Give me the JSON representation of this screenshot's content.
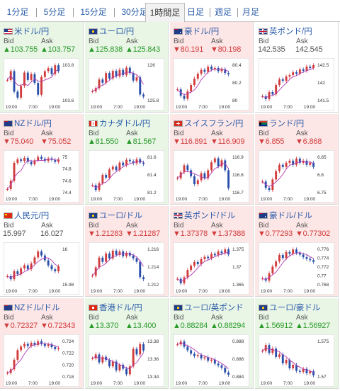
{
  "tabs": [
    {
      "label": "1分足",
      "active": false
    },
    {
      "label": "5分足",
      "active": false
    },
    {
      "label": "15分足",
      "active": false
    },
    {
      "label": "30分足",
      "active": false
    },
    {
      "label": "1時間足",
      "active": true
    },
    {
      "label": "日足",
      "active": false
    },
    {
      "label": "週足",
      "active": false
    },
    {
      "label": "月足",
      "active": false
    }
  ],
  "labels": {
    "bid": "Bid",
    "ask": "Ask"
  },
  "colors": {
    "up": "#2a9a2a",
    "down": "#d23c3c",
    "link": "#2a5caa",
    "ma_line": "#b23ab2",
    "up_bg": "#e9f6e6",
    "down_bg": "#fde6e6"
  },
  "pairs": [
    {
      "name": "米ドル/円",
      "flag": "us-flag-icon",
      "trend": "up",
      "bid": "▲103.755",
      "ask": "▲103.757",
      "yticks": [
        "103.8",
        "103.6"
      ],
      "xticks": [
        "19:00",
        "7:00",
        "19:00"
      ],
      "chart_data": {
        "type": "line",
        "close": [
          103.7,
          103.76,
          103.62,
          103.58,
          103.66,
          103.75,
          103.7,
          103.74,
          103.68,
          103.6,
          103.72,
          103.76,
          103.78,
          103.74,
          103.8,
          103.76
        ],
        "ylim": [
          103.55,
          103.82
        ]
      }
    },
    {
      "name": "ユーロ/円",
      "flag": "eu-flag-icon",
      "trend": "up",
      "bid": "▲125.838",
      "ask": "▲125.843",
      "yticks": [
        "126",
        "125.8"
      ],
      "xticks": [
        "19:00",
        "7:00",
        "19:00"
      ],
      "chart_data": {
        "type": "line",
        "close": [
          125.85,
          125.88,
          125.96,
          125.93,
          126.02,
          125.97,
          126.04,
          125.99,
          126.05,
          126.0,
          126.07,
          126.02,
          125.95,
          125.98,
          125.82,
          125.8
        ],
        "ylim": [
          125.75,
          126.12
        ]
      }
    },
    {
      "name": "豪ドル/円",
      "flag": "au-flag-icon",
      "trend": "down",
      "bid": "▼80.191",
      "ask": "▼80.198",
      "yticks": [
        "80.4",
        "80.2",
        "80"
      ],
      "xticks": [
        "19:00",
        "7:00",
        "19:00"
      ],
      "chart_data": {
        "type": "line",
        "close": [
          80.05,
          79.95,
          79.9,
          80.02,
          80.12,
          80.22,
          80.3,
          80.36,
          80.33,
          80.41,
          80.37,
          80.39,
          80.34,
          80.37,
          80.31,
          80.29
        ],
        "ylim": [
          79.85,
          80.48
        ]
      }
    },
    {
      "name": "英ポンド/円",
      "flag": "gb-flag-icon",
      "trend": "flat",
      "bid": "142.535",
      "ask": "142.545",
      "yticks": [
        "142.5",
        "142",
        "141.5"
      ],
      "xticks": [
        "19:00",
        "7:00",
        "19:00"
      ],
      "chart_data": {
        "type": "line",
        "close": [
          141.55,
          141.45,
          141.7,
          141.62,
          141.95,
          142.15,
          142.1,
          142.25,
          142.3,
          142.4,
          142.35,
          142.5,
          142.45,
          142.6,
          142.55,
          142.65
        ],
        "ylim": [
          141.35,
          142.75
        ]
      }
    },
    {
      "name": "NZドル/円",
      "flag": "nz-flag-icon",
      "trend": "down",
      "bid": "▼75.040",
      "ask": "▼75.052",
      "yticks": [
        "75",
        "74.8",
        "74.6",
        "74.4"
      ],
      "xticks": [
        "19:00",
        "7:00",
        "19:00"
      ],
      "chart_data": {
        "type": "line",
        "close": [
          74.45,
          74.62,
          74.98,
          75.05,
          75.02,
          75.08,
          75.0,
          74.95,
          75.03,
          75.1,
          75.06,
          75.02,
          75.07,
          75.04,
          75.0,
          75.05
        ],
        "ylim": [
          74.35,
          75.15
        ]
      }
    },
    {
      "name": "カナダドル/円",
      "flag": "ca-flag-icon",
      "trend": "up",
      "bid": "▲81.550",
      "ask": "▲81.567",
      "yticks": [
        "81.6",
        "81.4",
        "81.2"
      ],
      "xticks": [
        "19:00",
        "7:00",
        "19:00"
      ],
      "chart_data": {
        "type": "line",
        "close": [
          81.25,
          81.18,
          81.28,
          81.4,
          81.36,
          81.48,
          81.52,
          81.47,
          81.58,
          81.54,
          81.62,
          81.6,
          81.57,
          81.63,
          81.58,
          81.56
        ],
        "ylim": [
          81.12,
          81.7
        ]
      }
    },
    {
      "name": "スイスフラン/円",
      "flag": "ch-flag-icon",
      "trend": "down",
      "bid": "▼116.891",
      "ask": "▼116.909",
      "yticks": [
        "116.9",
        "116.8",
        "116.7"
      ],
      "xticks": [
        "19:00",
        "7:00",
        "19:00"
      ],
      "chart_data": {
        "type": "line",
        "close": [
          116.8,
          116.86,
          116.93,
          116.88,
          116.82,
          116.74,
          116.78,
          116.85,
          116.8,
          116.88,
          116.96,
          117.0,
          116.92,
          116.98,
          116.88,
          116.7
        ],
        "ylim": [
          116.64,
          117.04
        ]
      }
    },
    {
      "name": "ランド/円",
      "flag": "za-flag-icon",
      "trend": "down",
      "bid": "▼6.855",
      "ask": "▼6.868",
      "yticks": [
        "6.85",
        "6.8",
        "6.75"
      ],
      "xticks": [
        "19:00",
        "7:00",
        "19:00"
      ],
      "chart_data": {
        "type": "line",
        "close": [
          6.78,
          6.75,
          6.74,
          6.79,
          6.83,
          6.86,
          6.85,
          6.87,
          6.88,
          6.86,
          6.89,
          6.87,
          6.88,
          6.86,
          6.87,
          6.85
        ],
        "ylim": [
          6.72,
          6.91
        ]
      }
    },
    {
      "name": "人民元/円",
      "flag": "cn-flag-icon",
      "trend": "flat",
      "bid": "15.997",
      "ask": "16.027",
      "yticks": [
        "16",
        "15.98"
      ],
      "xticks": [
        "19:00",
        "7:00",
        "19:00"
      ],
      "chart_data": {
        "type": "line",
        "close": [
          15.985,
          15.982,
          15.99,
          15.987,
          15.993,
          15.996,
          15.992,
          15.998,
          16.004,
          16.01,
          16.006,
          16.001,
          15.996,
          15.992,
          15.99,
          15.995
        ],
        "ylim": [
          15.975,
          16.015
        ]
      }
    },
    {
      "name": "ユーロ/ドル",
      "flag": "eu-flag-icon",
      "trend": "down",
      "bid": "▼1.21283",
      "ask": "▼1.21287",
      "yticks": [
        "1.216",
        "1.214",
        "1.212"
      ],
      "xticks": [
        "19:00",
        "7:00",
        "19:00"
      ],
      "chart_data": {
        "type": "line",
        "close": [
          1.213,
          1.2142,
          1.2156,
          1.215,
          1.2162,
          1.2155,
          1.2166,
          1.216,
          1.2165,
          1.2158,
          1.2163,
          1.2159,
          1.2155,
          1.215,
          1.2128,
          1.2125
        ],
        "ylim": [
          1.2115,
          1.2172
        ]
      }
    },
    {
      "name": "英ポンド/ドル",
      "flag": "gb-flag-icon",
      "trend": "down",
      "bid": "▼1.37378",
      "ask": "▼1.37388",
      "yticks": [
        "1.375",
        "1.37",
        "1.365"
      ],
      "xticks": [
        "19:00",
        "7:00",
        "19:00"
      ],
      "chart_data": {
        "type": "line",
        "close": [
          1.3655,
          1.364,
          1.366,
          1.3685,
          1.37,
          1.3712,
          1.3705,
          1.3722,
          1.373,
          1.3725,
          1.374,
          1.3735,
          1.3748,
          1.3742,
          1.3755,
          1.3738
        ],
        "ylim": [
          1.363,
          1.3765
        ]
      }
    },
    {
      "name": "豪ドル/ドル",
      "flag": "au-flag-icon",
      "trend": "down",
      "bid": "▼0.77293",
      "ask": "▼0.77302",
      "yticks": [
        "0.776",
        "0.774",
        "0.772",
        "0.77",
        "0.768"
      ],
      "xticks": [
        "19:00",
        "7:00",
        "19:00"
      ],
      "chart_data": {
        "type": "line",
        "close": [
          0.769,
          0.7685,
          0.7702,
          0.7718,
          0.773,
          0.7745,
          0.7738,
          0.7752,
          0.7748,
          0.7758,
          0.775,
          0.7746,
          0.774,
          0.7736,
          0.7733,
          0.7729
        ],
        "ylim": [
          0.7672,
          0.7765
        ]
      }
    },
    {
      "name": "NZドル/ドル",
      "flag": "nz-flag-icon",
      "trend": "down",
      "bid": "▼0.72327",
      "ask": "▼0.72343",
      "yticks": [
        "0.724",
        "0.722",
        "0.720",
        "0.718"
      ],
      "xticks": [
        "19:00",
        "7:00",
        "19:00"
      ],
      "chart_data": {
        "type": "line",
        "close": [
          0.7185,
          0.7192,
          0.721,
          0.7228,
          0.7235,
          0.724,
          0.7236,
          0.7242,
          0.7238,
          0.7245,
          0.724,
          0.7236,
          0.7239,
          0.7234,
          0.723,
          0.7232
        ],
        "ylim": [
          0.7175,
          0.725
        ]
      }
    },
    {
      "name": "香港ドル/円",
      "flag": "hk-flag-icon",
      "trend": "up",
      "bid": "▲13.370",
      "ask": "▲13.400",
      "yticks": [
        "13.38",
        "13.36",
        "13.34"
      ],
      "xticks": [
        "19:00",
        "7:00",
        "19:00"
      ],
      "chart_data": {
        "type": "line",
        "close": [
          13.36,
          13.365,
          13.355,
          13.362,
          13.358,
          13.35,
          13.356,
          13.345,
          13.352,
          13.347,
          13.34,
          13.35,
          13.372,
          13.365,
          13.378,
          13.37
        ],
        "ylim": [
          13.335,
          13.385
        ]
      }
    },
    {
      "name": "ユーロ/英ポンド",
      "flag": "eu-flag-icon",
      "trend": "up",
      "bid": "▲0.88284",
      "ask": "▲0.88294",
      "yticks": [
        "0.888",
        "0.886",
        "0.884"
      ],
      "xticks": [
        "19:00",
        "7:00",
        "19:00"
      ],
      "chart_data": {
        "type": "line",
        "close": [
          0.8888,
          0.8893,
          0.8884,
          0.8878,
          0.8872,
          0.8868,
          0.887,
          0.8864,
          0.8866,
          0.886,
          0.8862,
          0.8855,
          0.8852,
          0.8848,
          0.884,
          0.8836
        ],
        "ylim": [
          0.883,
          0.8898
        ]
      }
    },
    {
      "name": "ユーロ/豪ドル",
      "flag": "eu-flag-icon",
      "trend": "up",
      "bid": "▲1.56912",
      "ask": "▲1.56927",
      "yticks": [
        "1.575",
        "1.57"
      ],
      "xticks": [
        "19:00",
        "7:00",
        "19:00"
      ],
      "chart_data": {
        "type": "line",
        "close": [
          1.574,
          1.5752,
          1.5736,
          1.5745,
          1.5728,
          1.5733,
          1.5715,
          1.5722,
          1.5705,
          1.5712,
          1.57,
          1.5698,
          1.5704,
          1.5695,
          1.5699,
          1.5691
        ],
        "ylim": [
          1.5685,
          1.5765
        ]
      }
    }
  ]
}
